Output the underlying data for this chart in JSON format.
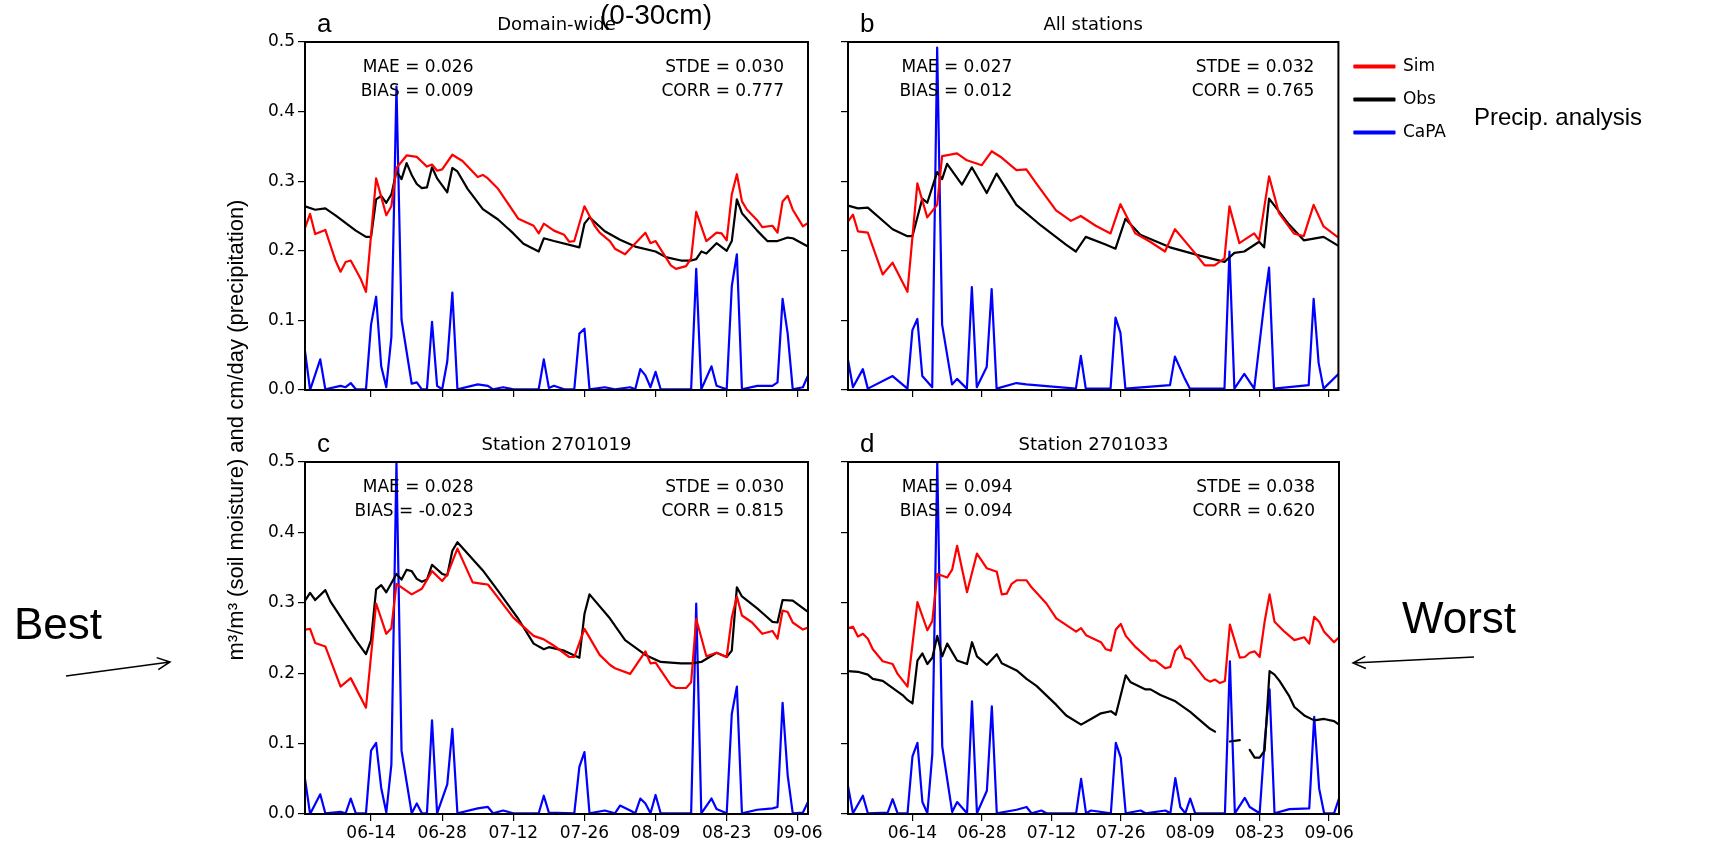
{
  "chart_data": [
    {
      "type": "line",
      "title": "Domain-wide",
      "ylabel": "m³/m³  (soil moisture) and cm/day (precipitation)",
      "annotations": [
        "a",
        "MAE = 0.026",
        "BIAS = 0.009",
        "STDE = 0.030",
        "CORR = 0.777",
        "(0-30cm)"
      ],
      "xlim": [
        "--06-01",
        "--09-08"
      ],
      "xticks": [
        {
          "value": "--06-14",
          "label": null
        },
        {
          "value": "--06-28",
          "label": null
        },
        {
          "value": "--07-12",
          "label": null
        },
        {
          "value": "--07-26",
          "label": null
        },
        {
          "value": "--08-09",
          "label": null
        },
        {
          "value": "--08-23",
          "label": null
        },
        {
          "value": "--09-06",
          "label": null
        }
      ],
      "ylim": [
        0,
        0.5
      ],
      "yticks": [
        {
          "value": 0,
          "label": "0.0"
        },
        0.1,
        0.2,
        0.3,
        0.4,
        0.5
      ],
      "tick_labels": "y",
      "series": [
        {
          "color": "#ff0000",
          "x": [
            "--06-01",
            "--06-02",
            "--06-03",
            "--06-05",
            "--06-07",
            "--06-08",
            "--06-09",
            "--06-10",
            "--06-12",
            "--06-13",
            "--06-15",
            "--06-17",
            "--06-18",
            "--06-19",
            "--06-21",
            "--06-23",
            "--06-24",
            "--06-25",
            "--06-26",
            "--06-27",
            "--06-28",
            "--06-30",
            "--07-02",
            "--07-05",
            "--07-06",
            "--07-07",
            "--07-09",
            "--07-13",
            "--07-16",
            "--07-17",
            "--07-18",
            "--07-20",
            "--07-22",
            "--07-23",
            "--07-24",
            "--07-26",
            "--07-28",
            "--07-29",
            "--07-31",
            "--08-01",
            "--08-03",
            "--08-04",
            "--08-07",
            "--08-08",
            "--08-09",
            "--08-12",
            "--08-13",
            "--08-15",
            "--08-16",
            "--08-17",
            "--08-19",
            "--08-21",
            "--08-22",
            "--08-23",
            "--08-24",
            "--08-25",
            "--08-26",
            "--08-27",
            "--08-29",
            "--08-30",
            "--09-01",
            "--09-02",
            "--09-03",
            "--09-04",
            "--09-05",
            "--09-07",
            "--09-08"
          ],
          "values": [
            0.233,
            0.253,
            0.224,
            0.23,
            0.186,
            0.17,
            0.184,
            0.186,
            0.159,
            0.141,
            0.304,
            0.251,
            0.264,
            0.319,
            0.337,
            0.335,
            0.328,
            0.321,
            0.324,
            0.315,
            0.317,
            0.338,
            0.329,
            0.306,
            0.309,
            0.304,
            0.289,
            0.246,
            0.236,
            0.225,
            0.239,
            0.229,
            0.223,
            0.213,
            0.214,
            0.264,
            0.236,
            0.226,
            0.214,
            0.203,
            0.195,
            0.203,
            0.226,
            0.211,
            0.214,
            0.179,
            0.174,
            0.178,
            0.189,
            0.256,
            0.214,
            0.226,
            0.225,
            0.215,
            0.281,
            0.31,
            0.271,
            0.259,
            0.244,
            0.234,
            0.236,
            0.226,
            0.271,
            0.279,
            0.259,
            0.235,
            0.24
          ]
        },
        {
          "color": "#000000",
          "x": [
            "--06-01",
            "--06-03",
            "--06-05",
            "--06-07",
            "--06-11",
            "--06-13",
            "--06-14",
            "--06-15",
            "--06-16",
            "--06-17",
            "--06-18",
            "--06-19",
            "--06-20",
            "--06-21",
            "--06-22",
            "--06-23",
            "--06-24",
            "--06-25",
            "--06-26",
            "--06-27",
            "--06-29",
            "--06-30",
            "--07-01",
            "--07-03",
            "--07-06",
            "--07-09",
            "--07-12",
            "--07-14",
            "--07-17",
            "--07-18",
            "--07-20",
            "--07-25",
            "--07-26",
            "--07-27",
            "--07-30",
            "--08-02",
            "--08-05",
            "--08-09",
            "--08-11",
            "--08-14",
            "--08-16",
            "--08-17",
            "--08-18",
            "--08-19",
            "--08-21",
            "--08-23",
            "--08-24",
            "--08-25",
            "--08-26",
            "--08-29",
            "--08-31",
            "--09-02",
            "--09-04",
            "--09-05",
            "--09-08"
          ],
          "values": [
            0.264,
            0.259,
            0.261,
            0.251,
            0.229,
            0.22,
            0.22,
            0.274,
            0.279,
            0.269,
            0.281,
            0.314,
            0.303,
            0.326,
            0.309,
            0.296,
            0.29,
            0.291,
            0.32,
            0.304,
            0.284,
            0.319,
            0.314,
            0.289,
            0.26,
            0.245,
            0.225,
            0.21,
            0.199,
            0.218,
            0.214,
            0.205,
            0.239,
            0.248,
            0.228,
            0.216,
            0.206,
            0.199,
            0.191,
            0.186,
            0.186,
            0.188,
            0.199,
            0.196,
            0.211,
            0.2,
            0.214,
            0.274,
            0.254,
            0.229,
            0.214,
            0.214,
            0.219,
            0.218,
            0.206
          ]
        },
        {
          "color": "#0000ff",
          "x": [
            "--06-01",
            "--06-02",
            "--06-04",
            "--06-05",
            "--06-08",
            "--06-09",
            "--06-10",
            "--06-11",
            "--06-13",
            "--06-14",
            "--06-15",
            "--06-16",
            "--06-17",
            "--06-18",
            "--06-19",
            "--06-20",
            "--06-22",
            "--06-23",
            "--06-24",
            "--06-25",
            "--06-26",
            "--06-27",
            "--06-28",
            "--06-29",
            "--06-30",
            "--07-01",
            "--07-05",
            "--07-07",
            "--07-08",
            "--07-10",
            "--07-12",
            "--07-17",
            "--07-18",
            "--07-19",
            "--07-20",
            "--07-22",
            "--07-24",
            "--07-25",
            "--07-26",
            "--07-27",
            "--07-30",
            "--08-01",
            "--08-04",
            "--08-05",
            "--08-06",
            "--08-07",
            "--08-08",
            "--08-09",
            "--08-10",
            "--08-16",
            "--08-17",
            "--08-18",
            "--08-20",
            "--08-21",
            "--08-23",
            "--08-24",
            "--08-25",
            "--08-26",
            "--08-29",
            "--09-01",
            "--09-02",
            "--09-03",
            "--09-04",
            "--09-05",
            "--09-07",
            "--09-08"
          ],
          "values": [
            0.056,
            0,
            0.044,
            0.001,
            0.006,
            0.004,
            0.01,
            0.001,
            0.001,
            0.094,
            0.134,
            0.034,
            0.004,
            0.076,
            0.436,
            0.101,
            0.009,
            0.011,
            0.001,
            0.001,
            0.098,
            0.006,
            0.001,
            0.041,
            0.14,
            0.001,
            0.008,
            0.006,
            0.001,
            0.004,
            0.001,
            0.001,
            0.044,
            0.003,
            0.006,
            0.001,
            0.001,
            0.081,
            0.088,
            0.001,
            0.004,
            0.001,
            0.004,
            0.001,
            0.03,
            0.021,
            0.004,
            0.026,
            0.001,
            0.001,
            0.174,
            0.001,
            0.034,
            0.006,
            0.001,
            0.149,
            0.195,
            0.001,
            0.006,
            0.006,
            0.011,
            0.131,
            0.081,
            0.001,
            0.004,
            0.021
          ]
        }
      ]
    },
    {
      "type": "line",
      "title": "All stations",
      "annotations": [
        "b",
        "MAE = 0.027",
        "BIAS = 0.012",
        "STDE = 0.032",
        "CORR = 0.765",
        "Precip. analysis"
      ],
      "legend": "right",
      "xlim": [
        "--06-01",
        "--09-08"
      ],
      "xticks": [
        {
          "value": "--06-14",
          "label": null
        },
        {
          "value": "--06-28",
          "label": null
        },
        {
          "value": "--07-12",
          "label": null
        },
        {
          "value": "--07-26",
          "label": null
        },
        {
          "value": "--08-09",
          "label": null
        },
        {
          "value": "--08-23",
          "label": null
        },
        {
          "value": "--09-06",
          "label": null
        }
      ],
      "ylim": [
        0,
        0.5
      ],
      "yticks": [
        {
          "value": 0,
          "label": null
        },
        {
          "value": 0.1,
          "label": null
        },
        {
          "value": 0.2,
          "label": null
        },
        {
          "value": 0.3,
          "label": null
        },
        {
          "value": 0.4,
          "label": null
        },
        {
          "value": 0.5,
          "label": null
        }
      ],
      "tick_labels": false,
      "series": [
        {
          "name": "Sim",
          "color": "#ff0000",
          "x": [
            "--06-01",
            "--06-02",
            "--06-03",
            "--06-05",
            "--06-08",
            "--06-10",
            "--06-13",
            "--06-15",
            "--06-17",
            "--06-19",
            "--06-20",
            "--06-23",
            "--06-25",
            "--06-28",
            "--06-30",
            "--07-02",
            "--07-05",
            "--07-07",
            "--07-09",
            "--07-13",
            "--07-16",
            "--07-18",
            "--07-21",
            "--07-24",
            "--07-26",
            "--07-29",
            "--08-01",
            "--08-04",
            "--08-06",
            "--08-10",
            "--08-12",
            "--08-14",
            "--08-16",
            "--08-17",
            "--08-19",
            "--08-22",
            "--08-23",
            "--08-25",
            "--08-27",
            "--08-30",
            "--09-01",
            "--09-03",
            "--09-05",
            "--09-08"
          ],
          "values": [
            0.242,
            0.252,
            0.228,
            0.226,
            0.166,
            0.183,
            0.141,
            0.297,
            0.248,
            0.266,
            0.336,
            0.34,
            0.33,
            0.323,
            0.343,
            0.334,
            0.316,
            0.317,
            0.297,
            0.258,
            0.243,
            0.25,
            0.236,
            0.225,
            0.267,
            0.225,
            0.213,
            0.199,
            0.231,
            0.197,
            0.179,
            0.179,
            0.189,
            0.264,
            0.211,
            0.225,
            0.215,
            0.307,
            0.254,
            0.225,
            0.221,
            0.266,
            0.235,
            0.219
          ]
        },
        {
          "name": "Obs",
          "color": "#000000",
          "x": [
            "--06-01",
            "--06-03",
            "--06-05",
            "--06-10",
            "--06-13",
            "--06-14",
            "--06-16",
            "--06-17",
            "--06-19",
            "--06-20",
            "--06-21",
            "--06-24",
            "--06-26",
            "--06-29",
            "--07-01",
            "--07-05",
            "--07-10",
            "--07-15",
            "--07-17",
            "--07-19",
            "--07-23",
            "--07-25",
            "--07-27",
            "--07-30",
            "--08-05",
            "--08-11",
            "--08-16",
            "--08-18",
            "--08-20",
            "--08-23",
            "--08-24",
            "--08-25",
            "--08-29",
            "--09-01",
            "--09-05",
            "--09-08"
          ],
          "values": [
            0.265,
            0.261,
            0.262,
            0.231,
            0.221,
            0.221,
            0.275,
            0.269,
            0.313,
            0.303,
            0.325,
            0.295,
            0.32,
            0.283,
            0.311,
            0.266,
            0.236,
            0.209,
            0.199,
            0.22,
            0.209,
            0.203,
            0.246,
            0.223,
            0.205,
            0.193,
            0.184,
            0.197,
            0.199,
            0.213,
            0.205,
            0.275,
            0.238,
            0.215,
            0.22,
            0.207
          ]
        },
        {
          "name": "CaPA",
          "color": "#0000ff",
          "x": [
            "--06-01",
            "--06-02",
            "--06-04",
            "--06-05",
            "--06-10",
            "--06-13",
            "--06-14",
            "--06-15",
            "--06-16",
            "--06-18",
            "--06-19",
            "--06-20",
            "--06-22",
            "--06-23",
            "--06-25",
            "--06-26",
            "--06-27",
            "--06-29",
            "--06-30",
            "--07-01",
            "--07-05",
            "--07-07",
            "--07-17",
            "--07-18",
            "--07-19",
            "--07-24",
            "--07-25",
            "--07-26",
            "--07-27",
            "--08-05",
            "--08-06",
            "--08-08",
            "--08-09",
            "--08-16",
            "--08-17",
            "--08-18",
            "--08-20",
            "--08-22",
            "--08-24",
            "--08-25",
            "--08-26",
            "--08-29",
            "--09-02",
            "--09-03",
            "--09-04",
            "--09-05",
            "--09-08"
          ],
          "values": [
            0.043,
            0.004,
            0.03,
            0.002,
            0.02,
            0.002,
            0.086,
            0.102,
            0.02,
            0.004,
            0.492,
            0.094,
            0.008,
            0.016,
            0.002,
            0.148,
            0.004,
            0.033,
            0.145,
            0.002,
            0.01,
            0.008,
            0.002,
            0.049,
            0.002,
            0.002,
            0.104,
            0.082,
            0.002,
            0.007,
            0.048,
            0.016,
            0.002,
            0.002,
            0.199,
            0.002,
            0.023,
            0.002,
            0.123,
            0.176,
            0.002,
            0.004,
            0.007,
            0.131,
            0.039,
            0.002,
            0.023
          ]
        }
      ]
    },
    {
      "type": "line",
      "title": "Station 2701019",
      "annotations": [
        "c",
        "MAE = 0.028",
        "BIAS = -0.023",
        "STDE = 0.030",
        "CORR = 0.815",
        "Best"
      ],
      "xlim": [
        "--06-01",
        "--09-08"
      ],
      "xticks": [
        {
          "value": "--06-14",
          "label": "06-14"
        },
        {
          "value": "--06-28",
          "label": "06-28"
        },
        {
          "value": "--07-12",
          "label": "07-12"
        },
        {
          "value": "--07-26",
          "label": "07-26"
        },
        {
          "value": "--08-09",
          "label": "08-09"
        },
        {
          "value": "--08-23",
          "label": "08-23"
        },
        {
          "value": "--09-06",
          "label": "09-06"
        }
      ],
      "ylim": [
        0,
        0.5
      ],
      "yticks": [
        {
          "value": 0,
          "label": "0.0"
        },
        0.1,
        0.2,
        0.3,
        0.4,
        0.5
      ],
      "series": [
        {
          "color": "#ff0000",
          "x": [
            "--06-01",
            "--06-02",
            "--06-03",
            "--06-05",
            "--06-08",
            "--06-10",
            "--06-13",
            "--06-15",
            "--06-17",
            "--06-18",
            "--06-19",
            "--06-22",
            "--06-24",
            "--06-26",
            "--06-28",
            "--06-29",
            "--07-01",
            "--07-04",
            "--07-06",
            "--07-07",
            "--07-12",
            "--07-16",
            "--07-18",
            "--07-20",
            "--07-23",
            "--07-24",
            "--07-26",
            "--07-29",
            "--07-31",
            "--08-01",
            "--08-04",
            "--08-07",
            "--08-08",
            "--08-09",
            "--08-12",
            "--08-13",
            "--08-15",
            "--08-16",
            "--08-17",
            "--08-19",
            "--08-21",
            "--08-23",
            "--08-24",
            "--08-25",
            "--08-26",
            "--08-28",
            "--08-30",
            "--09-01",
            "--09-02",
            "--09-03",
            "--09-04",
            "--09-05",
            "--09-07",
            "--09-08"
          ],
          "values": [
            0.262,
            0.263,
            0.243,
            0.238,
            0.181,
            0.193,
            0.151,
            0.299,
            0.256,
            0.264,
            0.327,
            0.312,
            0.32,
            0.345,
            0.331,
            0.34,
            0.377,
            0.329,
            0.327,
            0.326,
            0.279,
            0.253,
            0.248,
            0.239,
            0.223,
            0.223,
            0.263,
            0.226,
            0.212,
            0.207,
            0.199,
            0.231,
            0.214,
            0.215,
            0.183,
            0.179,
            0.179,
            0.187,
            0.277,
            0.224,
            0.229,
            0.223,
            0.279,
            0.309,
            0.282,
            0.272,
            0.256,
            0.26,
            0.249,
            0.289,
            0.287,
            0.272,
            0.262,
            0.265
          ]
        },
        {
          "color": "#000000",
          "x": [
            "--06-01",
            "--06-02",
            "--06-03",
            "--06-05",
            "--06-06",
            "--06-09",
            "--06-11",
            "--06-13",
            "--06-14",
            "--06-15",
            "--06-16",
            "--06-17",
            "--06-19",
            "--06-20",
            "--06-21",
            "--06-22",
            "--06-23",
            "--06-24",
            "--06-25",
            "--06-26",
            "--06-28",
            "--06-29",
            "--06-30",
            "--07-01",
            "--07-06",
            "--07-09",
            "--07-13",
            "--07-16",
            "--07-18",
            "--07-19",
            "--07-22",
            "--07-25",
            "--07-26",
            "--07-27",
            "--07-31",
            "--08-03",
            "--08-07",
            "--08-10",
            "--08-14",
            "--08-16",
            "--08-18",
            "--08-21",
            "--08-23",
            "--08-24",
            "--08-25",
            "--08-26",
            "--08-29",
            "--09-01",
            "--09-02",
            "--09-03",
            "--09-05",
            "--09-08"
          ],
          "values": [
            0.303,
            0.314,
            0.304,
            0.318,
            0.302,
            0.269,
            0.247,
            0.227,
            0.247,
            0.319,
            0.325,
            0.315,
            0.341,
            0.333,
            0.347,
            0.345,
            0.334,
            0.33,
            0.333,
            0.354,
            0.341,
            0.339,
            0.374,
            0.386,
            0.346,
            0.317,
            0.277,
            0.242,
            0.234,
            0.237,
            0.232,
            0.222,
            0.284,
            0.312,
            0.278,
            0.247,
            0.226,
            0.216,
            0.214,
            0.214,
            0.216,
            0.229,
            0.223,
            0.232,
            0.322,
            0.309,
            0.292,
            0.273,
            0.272,
            0.304,
            0.303,
            0.287
          ]
        },
        {
          "color": "#0000ff",
          "x": [
            "--06-01",
            "--06-02",
            "--06-04",
            "--06-05",
            "--06-08",
            "--06-09",
            "--06-10",
            "--06-11",
            "--06-13",
            "--06-14",
            "--06-15",
            "--06-16",
            "--06-17",
            "--06-18",
            "--06-19",
            "--06-20",
            "--06-22",
            "--06-23",
            "--06-24",
            "--06-25",
            "--06-26",
            "--06-27",
            "--06-29",
            "--06-30",
            "--07-01",
            "--07-05",
            "--07-07",
            "--07-08",
            "--07-10",
            "--07-12",
            "--07-17",
            "--07-18",
            "--07-19",
            "--07-24",
            "--07-25",
            "--07-26",
            "--07-27",
            "--07-30",
            "--08-01",
            "--08-02",
            "--08-04",
            "--08-05",
            "--08-06",
            "--08-07",
            "--08-08",
            "--08-09",
            "--08-10",
            "--08-16",
            "--08-17",
            "--08-18",
            "--08-20",
            "--08-21",
            "--08-23",
            "--08-24",
            "--08-25",
            "--08-26",
            "--08-29",
            "--09-01",
            "--09-02",
            "--09-03",
            "--09-04",
            "--09-05",
            "--09-07",
            "--09-08"
          ],
          "values": [
            0.05,
            0,
            0.028,
            0.001,
            0.003,
            0.001,
            0.022,
            0.001,
            0.001,
            0.09,
            0.101,
            0.037,
            0.002,
            0.07,
            0.5,
            0.09,
            0.001,
            0.015,
            0.001,
            0.001,
            0.133,
            0.001,
            0.042,
            0.121,
            0.001,
            0.008,
            0.01,
            0.001,
            0.005,
            0.001,
            0.001,
            0.026,
            0.002,
            0.001,
            0.067,
            0.088,
            0.001,
            0.005,
            0.001,
            0.012,
            0.005,
            0.001,
            0.022,
            0.015,
            0.001,
            0.027,
            0.001,
            0.001,
            0.299,
            0.001,
            0.022,
            0.007,
            0.001,
            0.142,
            0.181,
            0.001,
            0.006,
            0.008,
            0.01,
            0.158,
            0.055,
            0.001,
            0.002,
            0.017
          ]
        }
      ]
    },
    {
      "type": "line",
      "title": "Station 2701033",
      "annotations": [
        "d",
        "MAE = 0.094",
        "BIAS = 0.094",
        "STDE = 0.038",
        "CORR = 0.620",
        "Worst"
      ],
      "xlim": [
        "--06-01",
        "--09-08"
      ],
      "xticks": [
        {
          "value": "--06-14",
          "label": "06-14"
        },
        {
          "value": "--06-28",
          "label": "06-28"
        },
        {
          "value": "--07-12",
          "label": "07-12"
        },
        {
          "value": "--07-26",
          "label": "07-26"
        },
        {
          "value": "--08-09",
          "label": "08-09"
        },
        {
          "value": "--08-23",
          "label": "08-23"
        },
        {
          "value": "--09-06",
          "label": "09-06"
        }
      ],
      "ylim": [
        0,
        0.5
      ],
      "yticks": [
        {
          "value": 0,
          "label": null
        },
        {
          "value": 0.1,
          "label": null
        },
        {
          "value": 0.2,
          "label": null
        },
        {
          "value": 0.3,
          "label": null
        },
        {
          "value": 0.4,
          "label": null
        },
        {
          "value": 0.5,
          "label": null
        }
      ],
      "tick_labels": "x",
      "series": [
        {
          "color": "#ff0000",
          "x": [
            "--06-01",
            "--06-02",
            "--06-03",
            "--06-04",
            "--06-05",
            "--06-06",
            "--06-08",
            "--06-10",
            "--06-11",
            "--06-13",
            "--06-15",
            "--06-17",
            "--06-18",
            "--06-19",
            "--06-21",
            "--06-22",
            "--06-23",
            "--06-25",
            "--06-27",
            "--06-29",
            "--07-01",
            "--07-02",
            "--07-03",
            "--07-04",
            "--07-05",
            "--07-07",
            "--07-08",
            "--07-11",
            "--07-13",
            "--07-17",
            "--07-18",
            "--07-19",
            "--07-22",
            "--07-23",
            "--07-24",
            "--07-25",
            "--07-26",
            "--07-27",
            "--07-29",
            "--08-01",
            "--08-02",
            "--08-04",
            "--08-05",
            "--08-06",
            "--08-07",
            "--08-08",
            "--08-09",
            "--08-12",
            "--08-13",
            "--08-14",
            "--08-15",
            "--08-16",
            "--08-17",
            "--08-19",
            "--08-20",
            "--08-21",
            "--08-22",
            "--08-23",
            "--08-24",
            "--08-25",
            "--08-26",
            "--08-28",
            "--08-30",
            "--09-01",
            "--09-02",
            "--09-03",
            "--09-04",
            "--09-05",
            "--09-07",
            "--09-08"
          ],
          "values": [
            0.264,
            0.266,
            0.252,
            0.256,
            0.249,
            0.234,
            0.217,
            0.213,
            0.199,
            0.181,
            0.301,
            0.261,
            0.274,
            0.341,
            0.336,
            0.347,
            0.381,
            0.315,
            0.37,
            0.349,
            0.344,
            0.312,
            0.313,
            0.327,
            0.332,
            0.332,
            0.322,
            0.299,
            0.278,
            0.259,
            0.264,
            0.254,
            0.244,
            0.234,
            0.232,
            0.262,
            0.27,
            0.253,
            0.237,
            0.218,
            0.218,
            0.207,
            0.209,
            0.232,
            0.239,
            0.222,
            0.219,
            0.192,
            0.188,
            0.191,
            0.186,
            0.189,
            0.269,
            0.222,
            0.223,
            0.229,
            0.231,
            0.223,
            0.273,
            0.312,
            0.273,
            0.259,
            0.247,
            0.251,
            0.242,
            0.28,
            0.273,
            0.259,
            0.244,
            0.251
          ]
        },
        {
          "color": "#000000",
          "x": [
            "--06-01",
            "--06-03",
            "--06-05",
            "--06-06",
            "--06-08",
            "--06-12",
            "--06-13",
            "--06-14",
            "--06-15",
            "--06-16",
            "--06-17",
            "--06-18",
            "--06-19",
            "--06-20",
            "--06-21",
            "--06-23",
            "--06-25",
            "--06-26",
            "--06-27",
            "--06-29",
            "--07-01",
            "--07-02",
            "--07-05",
            "--07-07",
            "--07-09",
            "--07-13",
            "--07-15",
            "--07-18",
            "--07-20",
            "--07-22",
            "--07-24",
            "--07-25",
            "--07-27",
            "--07-28",
            "--07-31",
            "--08-01",
            "--08-03",
            "--08-06",
            "--08-09",
            "--08-11",
            "--08-13",
            "--08-14",
            "--08-16",
            "--08-17",
            "--08-19",
            "--08-20",
            "--08-21",
            "--08-22",
            "--08-23",
            "--08-24",
            "--08-25",
            "--08-26",
            "--08-27",
            "--08-29",
            "--08-30",
            "--09-01",
            "--09-03",
            "--09-05",
            "--09-07",
            "--09-08"
          ],
          "values": [
            0.203,
            0.202,
            0.198,
            0.192,
            0.189,
            0.169,
            0.162,
            0.157,
            0.218,
            0.228,
            0.213,
            0.222,
            0.253,
            0.224,
            0.242,
            0.218,
            0.213,
            0.244,
            0.224,
            0.212,
            0.227,
            0.214,
            0.204,
            0.192,
            0.182,
            0.155,
            0.14,
            0.127,
            0.135,
            0.143,
            0.146,
            0.141,
            0.197,
            0.187,
            0.177,
            0.177,
            0.169,
            0.16,
            0.145,
            0.133,
            0.121,
            0.117,
            null,
            0.103,
            0.105,
            null,
            0.091,
            0.08,
            0.08,
            0.09,
            0.203,
            0.198,
            0.189,
            0.167,
            0.152,
            0.14,
            0.133,
            0.135,
            0.132,
            0.127
          ]
        },
        {
          "color": "#0000ff",
          "x": [
            "--06-01",
            "--06-02",
            "--06-04",
            "--06-05",
            "--06-09",
            "--06-10",
            "--06-11",
            "--06-13",
            "--06-14",
            "--06-15",
            "--06-16",
            "--06-17",
            "--06-18",
            "--06-19",
            "--06-20",
            "--06-22",
            "--06-23",
            "--06-25",
            "--06-26",
            "--06-27",
            "--06-29",
            "--06-30",
            "--07-01",
            "--07-05",
            "--07-07",
            "--07-08",
            "--07-10",
            "--07-11",
            "--07-17",
            "--07-18",
            "--07-19",
            "--07-20",
            "--07-24",
            "--07-25",
            "--07-26",
            "--07-27",
            "--07-30",
            "--07-31",
            "--08-04",
            "--08-05",
            "--08-06",
            "--08-07",
            "--08-08",
            "--08-09",
            "--08-10",
            "--08-16",
            "--08-17",
            "--08-18",
            "--08-20",
            "--08-21",
            "--08-23",
            "--08-24",
            "--08-25",
            "--08-26",
            "--08-29",
            "--09-02",
            "--09-03",
            "--09-04",
            "--09-05",
            "--09-07",
            "--09-08"
          ],
          "values": [
            0.04,
            0.001,
            0.026,
            0.001,
            0.002,
            0.021,
            0.001,
            0.001,
            0.082,
            0.101,
            0.017,
            0.001,
            0.085,
            0.5,
            0.096,
            0.003,
            0.017,
            0.001,
            0.16,
            0.001,
            0.033,
            0.153,
            0.001,
            0.006,
            0.01,
            0.001,
            0.005,
            0.001,
            0.001,
            0.05,
            0.001,
            0.005,
            0.001,
            0.101,
            0.08,
            0.001,
            0.005,
            0.001,
            0.005,
            0.001,
            0.051,
            0.01,
            0.001,
            0.022,
            0.001,
            0.001,
            0.217,
            0.001,
            0.023,
            0.01,
            0.001,
            0.102,
            0.177,
            0.001,
            0.007,
            0.008,
            0.138,
            0.036,
            0.001,
            0.001,
            0.022
          ]
        }
      ]
    }
  ]
}
